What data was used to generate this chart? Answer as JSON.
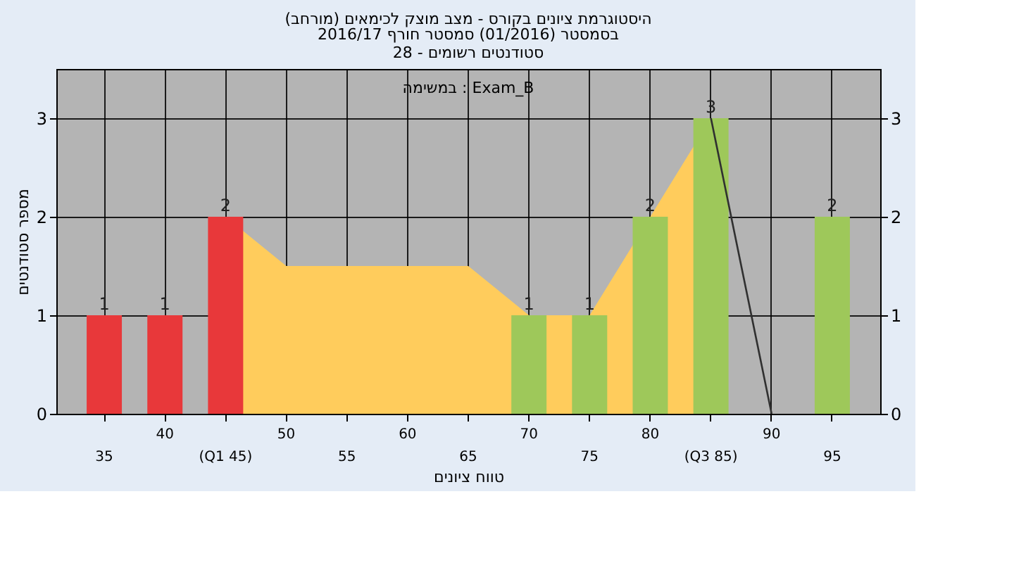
{
  "chart_data": {
    "type": "bar",
    "title": "היסטוגרמת ציונים בקורס - מצב מוצק לכימאים (מורחב)",
    "subtitle": "בסמסטר (01/2016) סמסטר חורף 2016/17\nסטודנטים רשומים - 28",
    "xlabel": "טווח ציונים",
    "ylabel": "מספר סטודנטים",
    "annotations": [
      "במשימה : Exam_B"
    ],
    "categories": [
      "35",
      "40",
      "(Q1 45)",
      "50",
      "55",
      "60",
      "65",
      "70",
      "75",
      "80",
      "(Q3 85)",
      "90",
      "95"
    ],
    "series": [
      {
        "type": "area",
        "color": "#ffcc5c",
        "values": [
          null,
          null,
          2,
          1.5,
          1.5,
          1.5,
          1.5,
          1,
          1,
          2,
          3,
          null,
          null
        ]
      },
      {
        "colors": [
          "#e8383a",
          "#e8383a",
          "#e8383a",
          "#9ec85a",
          "#9ec85a",
          "#9ec85a",
          "#9ec85a",
          "#9ec85a",
          "#9ec85a",
          "#9ec85a",
          "#9ec85a",
          "#9ec85a",
          "#9ec85a"
        ],
        "values": [
          1,
          1,
          2,
          0,
          0,
          0,
          0,
          1,
          1,
          2,
          3,
          0,
          2
        ],
        "value_labels": [
          "1",
          "1",
          "2",
          null,
          null,
          null,
          null,
          "1",
          "1",
          "2",
          "3",
          null,
          "2"
        ]
      },
      {
        "type": "line",
        "color": "#303030",
        "values": [
          null,
          null,
          null,
          null,
          null,
          null,
          null,
          null,
          null,
          null,
          3,
          0,
          null
        ]
      }
    ],
    "ylim": [
      0,
      3.5
    ],
    "yticks": [
      0,
      1,
      2,
      3
    ],
    "y2lim": [
      0,
      3.5
    ],
    "y2ticks": [
      0,
      1,
      2,
      3
    ],
    "grid": true
  }
}
